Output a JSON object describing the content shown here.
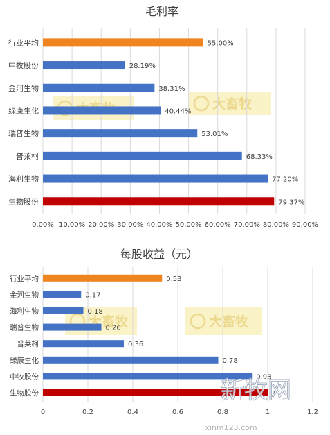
{
  "chart_data": [
    {
      "type": "bar",
      "orientation": "horizontal",
      "title": "毛利率",
      "categories": [
        "行业平均",
        "中牧股份",
        "金河生物",
        "绿康生化",
        "瑞普生物",
        "普莱柯",
        "海利生物",
        "生物股份"
      ],
      "values": [
        55.0,
        28.19,
        38.31,
        40.44,
        53.01,
        68.33,
        77.2,
        79.37
      ],
      "data_labels": [
        "55.00%",
        "28.19%",
        "38.31%",
        "40.44%",
        "53.01%",
        "68.33%",
        "77.20%",
        "79.37%"
      ],
      "bar_colors": [
        "#f0841e",
        "#4472c4",
        "#4472c4",
        "#4472c4",
        "#4472c4",
        "#4472c4",
        "#4472c4",
        "#c00000"
      ],
      "xlim": [
        0,
        90
      ],
      "ticks": [
        0,
        10,
        20,
        30,
        40,
        50,
        60,
        70,
        80,
        90
      ],
      "tick_labels": [
        "0.00%",
        "10.00%",
        "20.00%",
        "30.00%",
        "40.00%",
        "50.00%",
        "60.00%",
        "70.00%",
        "80.00%",
        "90.00%"
      ],
      "grid": true,
      "watermark": "大畜牧"
    },
    {
      "type": "bar",
      "orientation": "horizontal",
      "title": "每股收益（元）",
      "categories": [
        "行业平均",
        "金河生物",
        "海利生物",
        "瑞普生物",
        "普莱柯",
        "绿康生化",
        "中牧股份",
        "生物股份"
      ],
      "values": [
        0.53,
        0.17,
        0.18,
        0.26,
        0.36,
        0.78,
        0.93,
        1
      ],
      "data_labels": [
        "0.53",
        "0.17",
        "0.18",
        "0.26",
        "0.36",
        "0.78",
        "0.93",
        "1"
      ],
      "bar_colors": [
        "#f0841e",
        "#4472c4",
        "#4472c4",
        "#4472c4",
        "#4472c4",
        "#4472c4",
        "#4472c4",
        "#c00000"
      ],
      "xlim": [
        0,
        1.2
      ],
      "ticks": [
        0,
        0.2,
        0.4,
        0.6,
        0.8,
        1,
        1.2
      ],
      "tick_labels": [
        "0",
        "0.2",
        "0.4",
        "0.6",
        "0.8",
        "1",
        "1.2"
      ],
      "grid": true,
      "watermark": "大畜牧"
    }
  ],
  "overlay": {
    "logo": "新牧网",
    "url": "xinm123.com"
  },
  "colors": {
    "axis_text": "#404040",
    "grid": "#d9d9d9",
    "watermark_bg": "#fbf3c8",
    "watermark_text": "#ecd98f"
  }
}
